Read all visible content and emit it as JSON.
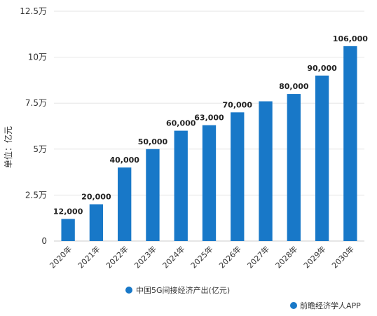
{
  "chart_data": {
    "type": "bar",
    "categories": [
      "2020年",
      "2021年",
      "2022年",
      "2023年",
      "2024年",
      "2025年",
      "2026年",
      "2027年",
      "2028年",
      "2029年",
      "2030年"
    ],
    "series": [
      {
        "name": "中国5G间接经济产出(亿元)",
        "values": [
          12000,
          20000,
          40000,
          50000,
          60000,
          63000,
          70000,
          76000,
          80000,
          90000,
          106000
        ],
        "labels": [
          "12,000",
          "20,000",
          "40,000",
          "50,000",
          "60,000",
          "63,000",
          "70,000",
          null,
          "80,000",
          "90,000",
          "106,000"
        ],
        "color": "#1878c8"
      }
    ],
    "ylabel": "单位：亿元",
    "ylim": [
      0,
      125000
    ],
    "yticks": [
      0,
      25000,
      50000,
      75000,
      100000,
      125000
    ],
    "ytick_labels": [
      "0",
      "2.5万",
      "5万",
      "7.5万",
      "10万",
      "12.5万"
    ],
    "grid": true,
    "legend": "bottom-center"
  },
  "source": "前瞻经济学人APP",
  "colors": {
    "bar": "#1878c8",
    "grid": "#e6e6e6",
    "axis": "#cccccc"
  }
}
